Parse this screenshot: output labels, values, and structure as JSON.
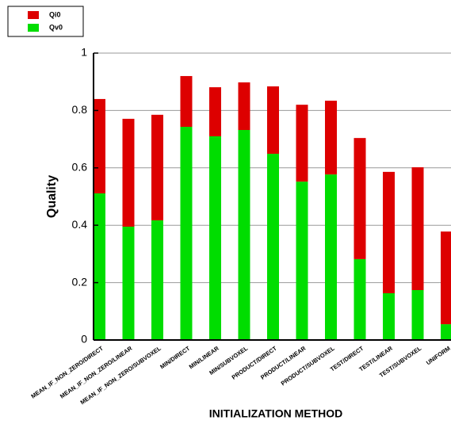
{
  "chart_data": {
    "type": "stacked_bar",
    "x_label": "INITIALIZATION METHOD",
    "y_label": "Quality",
    "categories": [
      "MEAN_IF_NON_ZERO/DIRECT",
      "MEAN_IF_NON_ZERO/LINEAR",
      "MEAN_IF_NON_ZERO/SUBVOXEL",
      "MIN/DIRECT",
      "MIN/LINEAR",
      "MIN/SUBVOXEL",
      "PRODUCT/DIRECT",
      "PRODUCT/LINEAR",
      "PRODUCT/SUBVOXEL",
      "TEST/DIRECT",
      "TEST/LINEAR",
      "TEST/SUBVOXEL",
      "UNIFORM"
    ],
    "series": [
      {
        "name": "Qv0",
        "color": "#00dd00",
        "values": [
          0.511,
          0.395,
          0.417,
          0.743,
          0.71,
          0.732,
          0.649,
          0.552,
          0.577,
          0.282,
          0.163,
          0.174,
          0.055
        ]
      },
      {
        "name": "Qi0",
        "color": "#dd0000",
        "values": [
          0.329,
          0.376,
          0.368,
          0.177,
          0.171,
          0.166,
          0.235,
          0.268,
          0.257,
          0.422,
          0.423,
          0.428,
          0.323
        ]
      }
    ],
    "legend_order": [
      1,
      0
    ],
    "ylim": [
      0,
      1
    ],
    "yticks": [
      0,
      0.2,
      0.4,
      0.6,
      0.8,
      1
    ],
    "grid": true
  }
}
